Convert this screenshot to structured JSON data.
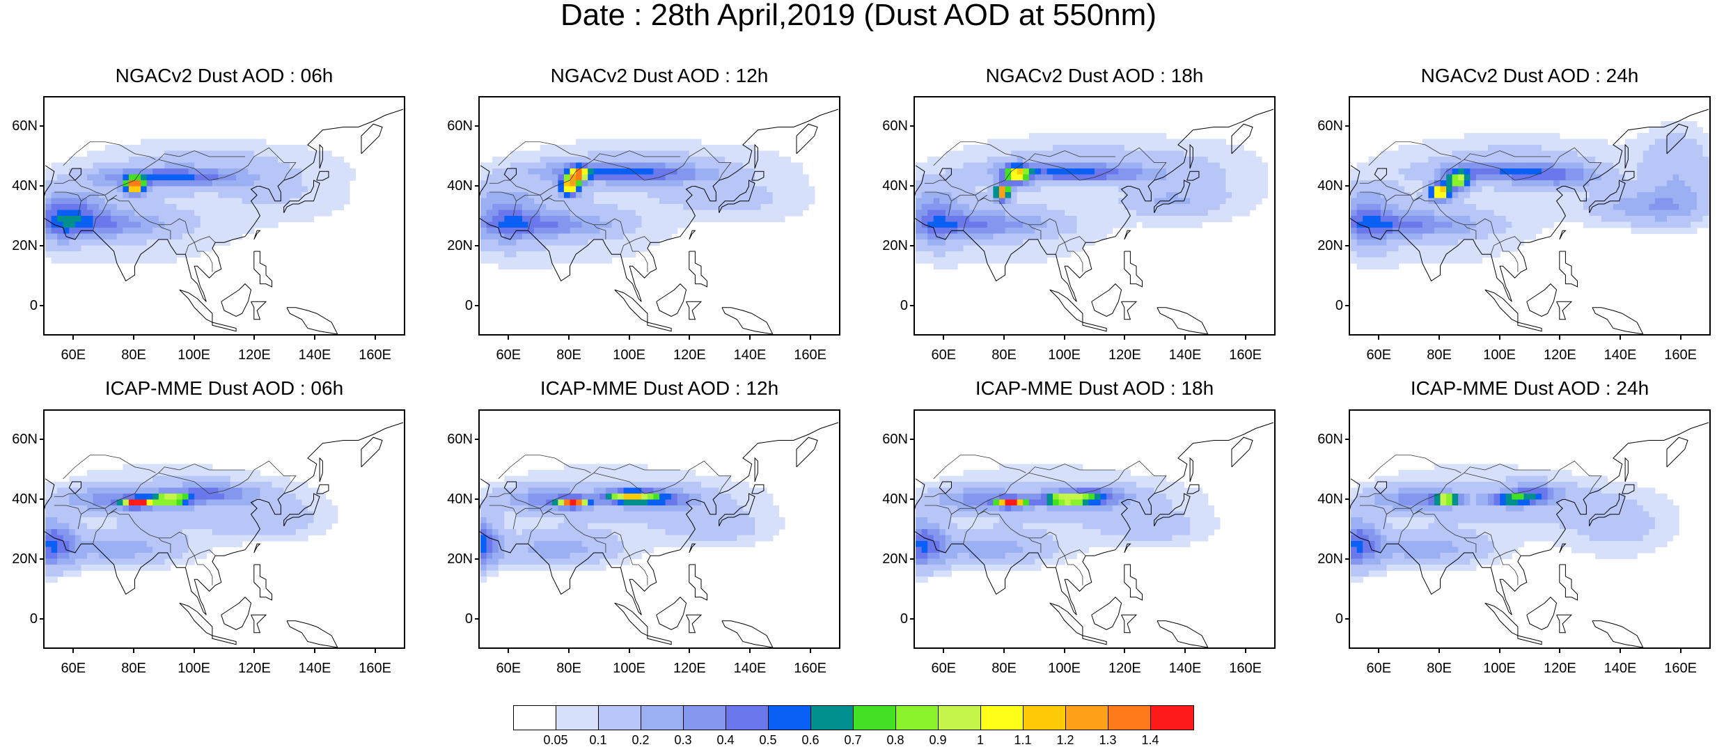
{
  "title": "Date : 28th April,2019 (Dust AOD at 550nm)",
  "panels": [
    {
      "title": "NGACv2 Dust AOD : 06h",
      "model": "NGACv2",
      "hour": "06h"
    },
    {
      "title": "NGACv2 Dust AOD : 12h",
      "model": "NGACv2",
      "hour": "12h"
    },
    {
      "title": "NGACv2 Dust AOD : 18h",
      "model": "NGACv2",
      "hour": "18h"
    },
    {
      "title": "NGACv2 Dust AOD : 24h",
      "model": "NGACv2",
      "hour": "24h"
    },
    {
      "title": "ICAP-MME Dust AOD : 06h",
      "model": "ICAP-MME",
      "hour": "06h"
    },
    {
      "title": "ICAP-MME Dust AOD : 12h",
      "model": "ICAP-MME",
      "hour": "12h"
    },
    {
      "title": "ICAP-MME Dust AOD : 18h",
      "model": "ICAP-MME",
      "hour": "18h"
    },
    {
      "title": "ICAP-MME Dust AOD : 24h",
      "model": "ICAP-MME",
      "hour": "24h"
    }
  ],
  "axes": {
    "lat_labels": [
      "60N",
      "40N",
      "20N",
      "0"
    ],
    "lat_values": [
      60,
      40,
      20,
      0
    ],
    "lon_labels": [
      "60E",
      "80E",
      "100E",
      "120E",
      "140E",
      "160E"
    ],
    "lon_values": [
      60,
      80,
      100,
      120,
      140,
      160
    ],
    "lon_range": [
      50,
      170
    ],
    "lat_range": [
      -10,
      70
    ]
  },
  "colorbar": {
    "colors": [
      "#ffffff",
      "#d6e0fa",
      "#b7c6f6",
      "#9bb0f2",
      "#8397ef",
      "#6a78ec",
      "#0a60f4",
      "#008f8f",
      "#44e024",
      "#8af22a",
      "#c4f44a",
      "#ffff1a",
      "#ffca08",
      "#ffa21a",
      "#ff7a1a",
      "#ff1a1a"
    ],
    "labels": [
      "0.05",
      "0.1",
      "0.2",
      "0.3",
      "0.4",
      "0.5",
      "0.6",
      "0.7",
      "0.8",
      "0.9",
      "1",
      "1.1",
      "1.2",
      "1.3",
      "1.4"
    ]
  }
}
